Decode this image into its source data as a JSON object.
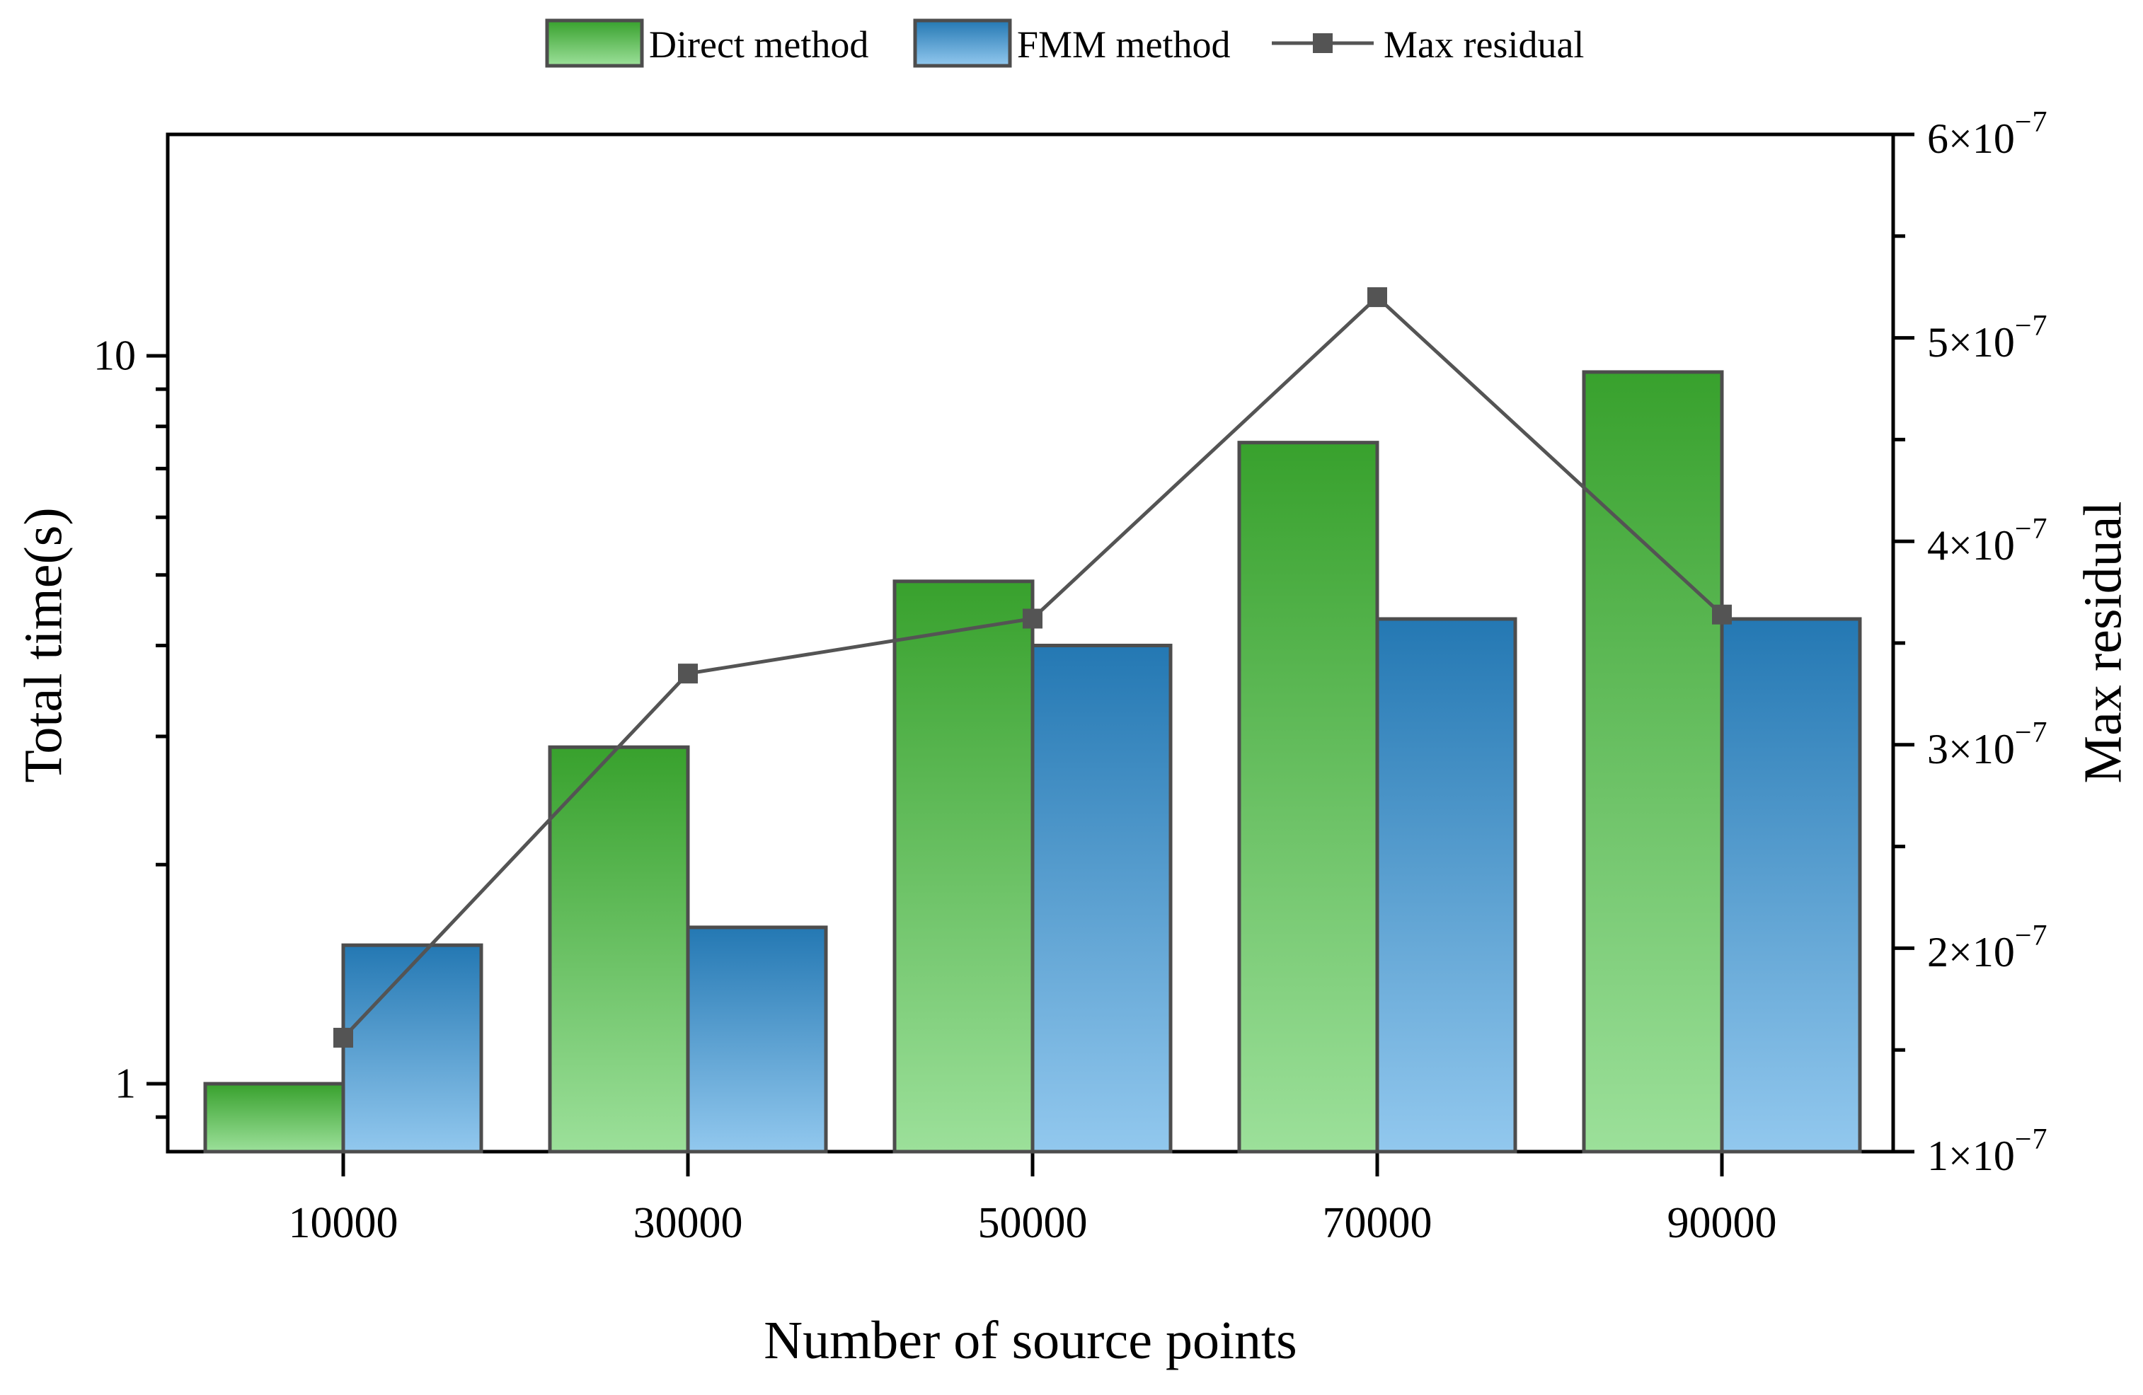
{
  "legend": {
    "items": [
      {
        "label": "Direct method",
        "swatch": "green-gradient"
      },
      {
        "label": "FMM method",
        "swatch": "blue-gradient"
      },
      {
        "label": "Max residual",
        "swatch": "line-square-marker"
      }
    ]
  },
  "axes": {
    "left": {
      "title": "Total time(s)",
      "scale": "log",
      "ticks": [
        {
          "label": "10",
          "value": 10
        },
        {
          "label": "1",
          "value": 1
        }
      ]
    },
    "right": {
      "title": "Max residual",
      "scale": "linear",
      "ticks": [
        {
          "label": "6×10⁻⁷",
          "value": 6e-07
        },
        {
          "label": "5×10⁻⁷",
          "value": 5e-07
        },
        {
          "label": "4×10⁻⁷",
          "value": 4e-07
        },
        {
          "label": "3×10⁻⁷",
          "value": 3e-07
        },
        {
          "label": "2×10⁻⁷",
          "value": 2e-07
        },
        {
          "label": "1×10⁻⁷",
          "value": 1e-07
        }
      ]
    },
    "x": {
      "title": "Number of source points",
      "ticks": [
        {
          "label": "10000",
          "value": 10000
        },
        {
          "label": "30000",
          "value": 30000
        },
        {
          "label": "50000",
          "value": 50000
        },
        {
          "label": "70000",
          "value": 70000
        },
        {
          "label": "90000",
          "value": 90000
        }
      ]
    }
  },
  "chart_data": {
    "type": "bar",
    "categories": [
      10000,
      30000,
      50000,
      70000,
      90000
    ],
    "series": [
      {
        "name": "Direct method",
        "type": "bar",
        "axis": "left",
        "values": [
          1.0,
          2.9,
          4.9,
          7.6,
          9.5
        ]
      },
      {
        "name": "FMM method",
        "type": "bar",
        "axis": "left",
        "values": [
          1.55,
          1.64,
          4.0,
          4.35,
          4.35
        ]
      },
      {
        "name": "Max residual",
        "type": "line",
        "axis": "right",
        "values": [
          1.56e-07,
          3.35e-07,
          3.62e-07,
          5.2e-07,
          3.64e-07
        ]
      }
    ],
    "title": "",
    "xlabel": "Number of source points",
    "ylabel_left": "Total time(s)",
    "ylabel_right": "Max residual",
    "y_left": {
      "scale": "log",
      "range": [
        0.8,
        20.3
      ],
      "ticks": [
        1,
        10
      ]
    },
    "y_right": {
      "scale": "linear",
      "range": [
        1e-07,
        6e-07
      ],
      "ticks": [
        1e-07,
        2e-07,
        3e-07,
        4e-07,
        5e-07,
        6e-07
      ]
    },
    "legend_position": "top",
    "grid": false
  },
  "colors": {
    "green_top": "#38a12d",
    "green_bottom": "#9ce09a",
    "blue_top": "#2478b3",
    "blue_bottom": "#92c8ee",
    "bar_border": "#4d4d4d",
    "line": "#545454",
    "marker": "#545454",
    "axis": "#000000",
    "text": "#000000"
  }
}
